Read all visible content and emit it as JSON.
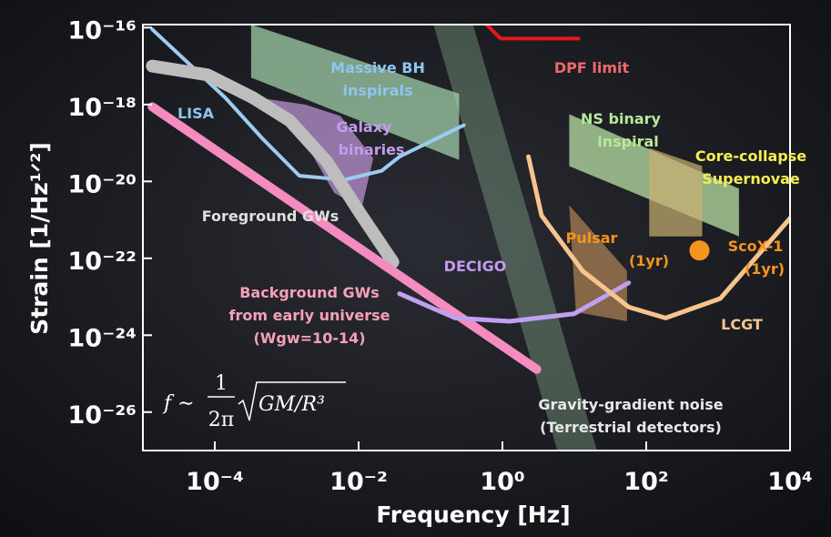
{
  "chart_data": {
    "type": "line",
    "xlabel": "Frequency   [Hz]",
    "ylabel": "Strain   [1/Hz¹ᐟ²]",
    "xscale": "log",
    "yscale": "log",
    "xlim": [
      1e-05,
      10000.0
    ],
    "ylim": [
      1e-27,
      1.2e-16
    ],
    "xticks": [
      {
        "value": 0.0001,
        "label": "10⁻⁴"
      },
      {
        "value": 0.01,
        "label": "10⁻²"
      },
      {
        "value": 1,
        "label": "10⁰"
      },
      {
        "value": 100,
        "label": "10²"
      },
      {
        "value": 10000.0,
        "label": "10⁴"
      }
    ],
    "yticks": [
      {
        "value": 1e-16,
        "label": "10⁻¹⁶"
      },
      {
        "value": 1e-18,
        "label": "10⁻¹⁸"
      },
      {
        "value": 1e-20,
        "label": "10⁻²⁰"
      },
      {
        "value": 1e-22,
        "label": "10⁻²²"
      },
      {
        "value": 1e-24,
        "label": "10⁻²⁴"
      },
      {
        "value": 1e-26,
        "label": "10⁻²⁶"
      }
    ],
    "regions": [
      {
        "color": "#a9d9b1",
        "x": [
          0.11,
          0.39,
          20.6,
          5.8
        ],
        "values": [
          1.2e-16,
          1.2e-16,
          1e-27,
          1e-27
        ]
      },
      {
        "color": "#a8d8b0",
        "x": [
          0.00032,
          0.25,
          0.25,
          0.00032
        ],
        "values": [
          1.2e-16,
          1.9e-18,
          3.6e-20,
          5e-18
        ]
      },
      {
        "color": "#b892d0",
        "x": [
          0.0004,
          0.0018,
          0.0056,
          0.016,
          0.011,
          0.0046,
          0.0016
        ],
        "values": [
          1.5e-18,
          1e-18,
          5e-19,
          4e-20,
          2e-21,
          5e-21,
          1.5e-19
        ]
      },
      {
        "color": "#b9e0a5",
        "x": [
          8.5,
          1950,
          1950,
          8.5
        ],
        "values": [
          5.6e-19,
          6.5e-21,
          3.7e-22,
          2.5e-20
        ]
      },
      {
        "color": "#c9b070",
        "x": [
          110,
          600,
          600,
          110
        ],
        "values": [
          7.4e-20,
          2.5e-20,
          3.7e-22,
          3.7e-22
        ]
      },
      {
        "color": "#a07850",
        "x": [
          8.5,
          54,
          54,
          10.5
        ],
        "values": [
          2.4e-21,
          4.7e-23,
          2.3e-24,
          4e-24
        ]
      }
    ],
    "series": [
      {
        "color": "#9ecbf0",
        "x": [
          1.35e-05,
          0.00014,
          0.00046,
          0.0015,
          0.0064,
          0.021,
          0.037,
          0.29
        ],
        "values": [
          9e-17,
          1.5e-18,
          1.3e-19,
          1.4e-20,
          1.1e-20,
          1.9e-20,
          4.4e-20,
          2.9e-19
        ]
      },
      {
        "color": "#bdbdbd",
        "x": [
          1.35e-05,
          7.9e-05,
          0.00034,
          0.0011,
          0.0036,
          0.011,
          0.03
        ],
        "values": [
          1e-17,
          5.9e-18,
          1.5e-18,
          3.8e-19,
          3.3e-20,
          1.3e-21,
          8e-23
        ]
      },
      {
        "color": "#f48cc0",
        "x": [
          1.35e-05,
          3.0
        ],
        "values": [
          8.7e-19,
          1.3e-25
        ]
      },
      {
        "color": "#c0a0f0",
        "x": [
          0.037,
          0.22,
          1.26,
          9.9,
          57
        ],
        "values": [
          1.2e-23,
          2.8e-24,
          2.3e-24,
          3.6e-24,
          2.3e-23
        ]
      },
      {
        "color": "#f7c48e",
        "x": [
          2.3,
          3.5,
          13,
          57,
          186,
          1070,
          10000.0
        ],
        "values": [
          4.4e-20,
          1.3e-21,
          4.7e-23,
          5.4e-24,
          2.8e-24,
          9e-24,
          1.1e-21
        ]
      },
      {
        "color": "#e8161b",
        "x": [
          0.6,
          0.94,
          11.4
        ],
        "values": [
          1.2e-16,
          5.2e-17,
          5.2e-17
        ]
      }
    ],
    "markers": [
      {
        "color": "#f7941d",
        "x": 550,
        "value": 1.6e-22
      }
    ],
    "annotations": [
      {
        "color": "#8ec6f0",
        "lines": [
          "Massive BH",
          "inspirals"
        ]
      },
      {
        "color": "#f06a6a",
        "lines": [
          "DPF limit"
        ]
      },
      {
        "color": "#8ec6f0",
        "lines": [
          "LISA"
        ]
      },
      {
        "color": "#c49bf0",
        "lines": [
          "Galaxy",
          "binaries"
        ]
      },
      {
        "color": "#b8e89a",
        "lines": [
          "NS binary",
          "inspiral"
        ]
      },
      {
        "color": "#f5f050",
        "lines": [
          "Core-collapse",
          "Supernovae"
        ]
      },
      {
        "color": "#e0e0e0",
        "lines": [
          "Foreground GWs"
        ]
      },
      {
        "color": "#f7941d",
        "lines": [
          "Pulsar",
          "(1yr)"
        ]
      },
      {
        "color": "#f7941d",
        "lines": [
          "ScoX-1",
          "(1yr)"
        ]
      },
      {
        "color": "#c49bf0",
        "lines": [
          "DECIGO"
        ]
      },
      {
        "color": "#f7a0b8",
        "lines": [
          "Background GWs",
          "from early universe",
          "(Wgw=10-14)"
        ]
      },
      {
        "color": "#f7c48e",
        "lines": [
          "LCGT"
        ]
      },
      {
        "color": "#e8e8e8",
        "lines": [
          "Gravity-gradient noise",
          "(Terrestrial detectors)"
        ]
      }
    ],
    "formula": {
      "lhs": "f ∼",
      "numerator": "1",
      "denominator": "2π",
      "radicand": "GM/R³"
    }
  }
}
